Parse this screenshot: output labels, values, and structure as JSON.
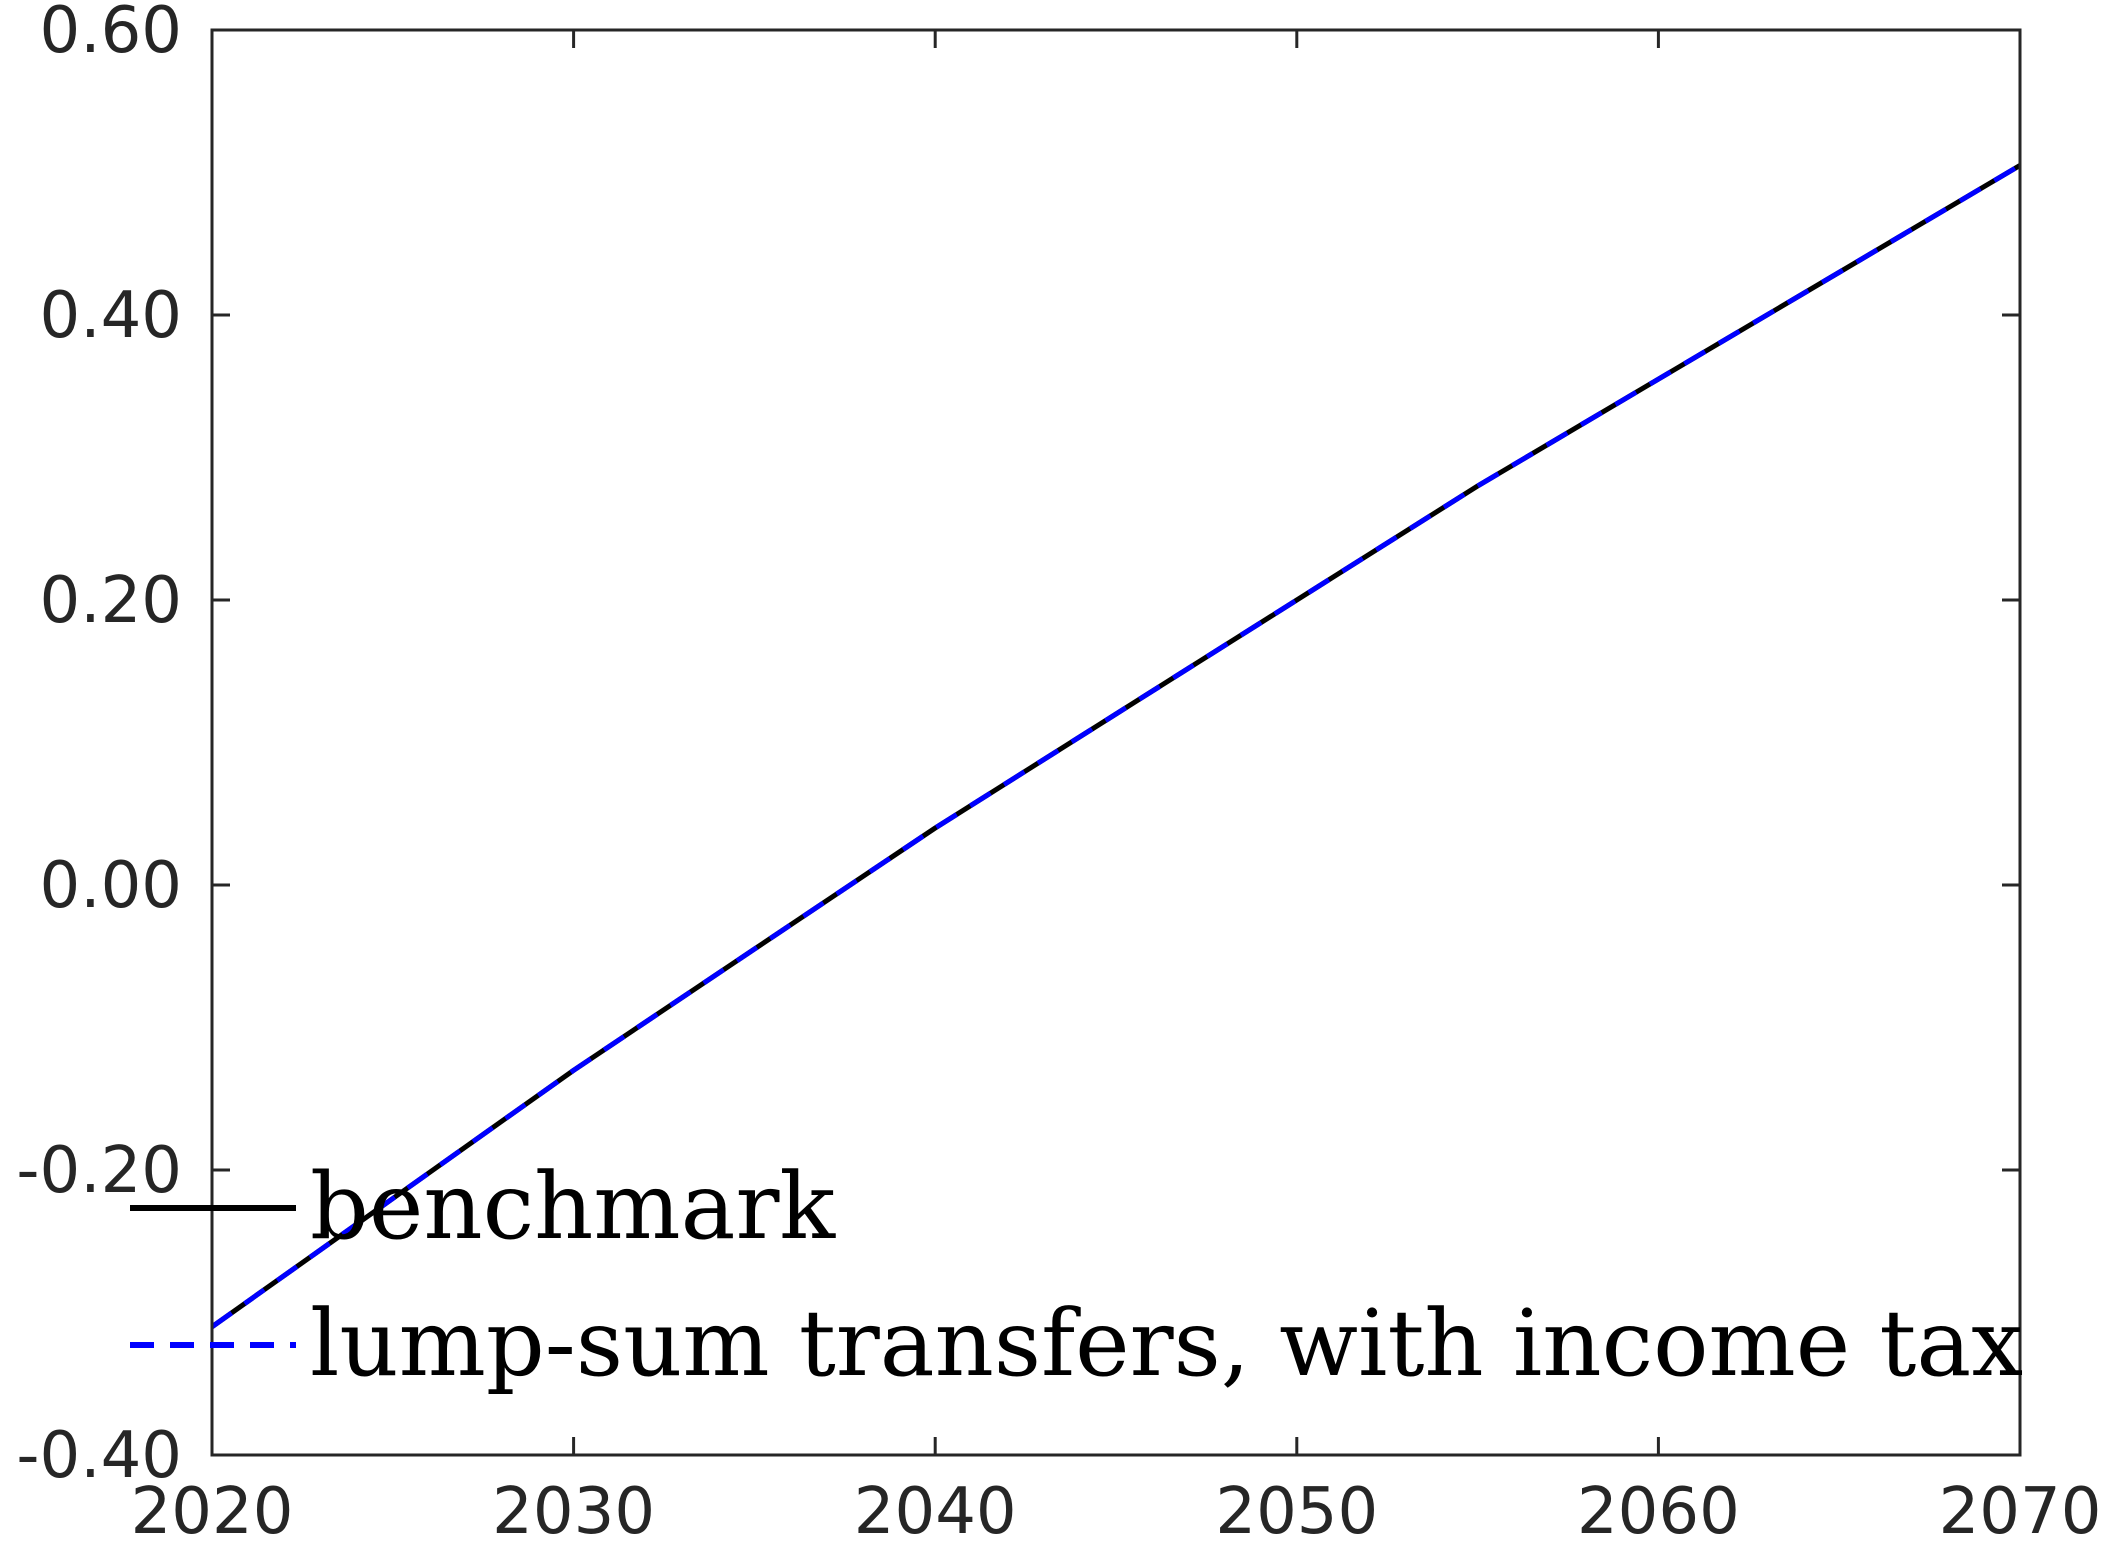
{
  "chart_data": {
    "type": "line",
    "title": "",
    "xlabel": "",
    "ylabel": "",
    "xlim": [
      2020,
      2070
    ],
    "ylim": [
      -0.4,
      0.6
    ],
    "xticks": [
      2020,
      2030,
      2040,
      2050,
      2060,
      2070
    ],
    "xtick_labels": [
      "2020",
      "2030",
      "2040",
      "2050",
      "2060",
      "2070"
    ],
    "yticks": [
      -0.4,
      -0.2,
      0.0,
      0.2,
      0.4,
      0.6
    ],
    "ytick_labels": [
      "-0.40",
      "-0.20",
      "0.00",
      "0.20",
      "0.40",
      "0.60"
    ],
    "grid": false,
    "legend_position": "bottom-left",
    "series": [
      {
        "name": "benchmark",
        "color": "#000000",
        "style": "solid",
        "x": [
          2020,
          2025,
          2030,
          2035,
          2040,
          2045,
          2050,
          2055,
          2060,
          2065,
          2070
        ],
        "y": [
          -0.31,
          -0.22,
          -0.13,
          -0.045,
          0.04,
          0.12,
          0.2,
          0.28,
          0.355,
          0.43,
          0.505
        ]
      },
      {
        "name": "lump-sum transfers, with income tax",
        "color": "#0000ff",
        "style": "dashed",
        "x": [
          2020,
          2025,
          2030,
          2035,
          2040,
          2045,
          2050,
          2055,
          2060,
          2065,
          2070
        ],
        "y": [
          -0.31,
          -0.22,
          -0.13,
          -0.045,
          0.04,
          0.12,
          0.2,
          0.28,
          0.355,
          0.43,
          0.505
        ]
      }
    ]
  }
}
